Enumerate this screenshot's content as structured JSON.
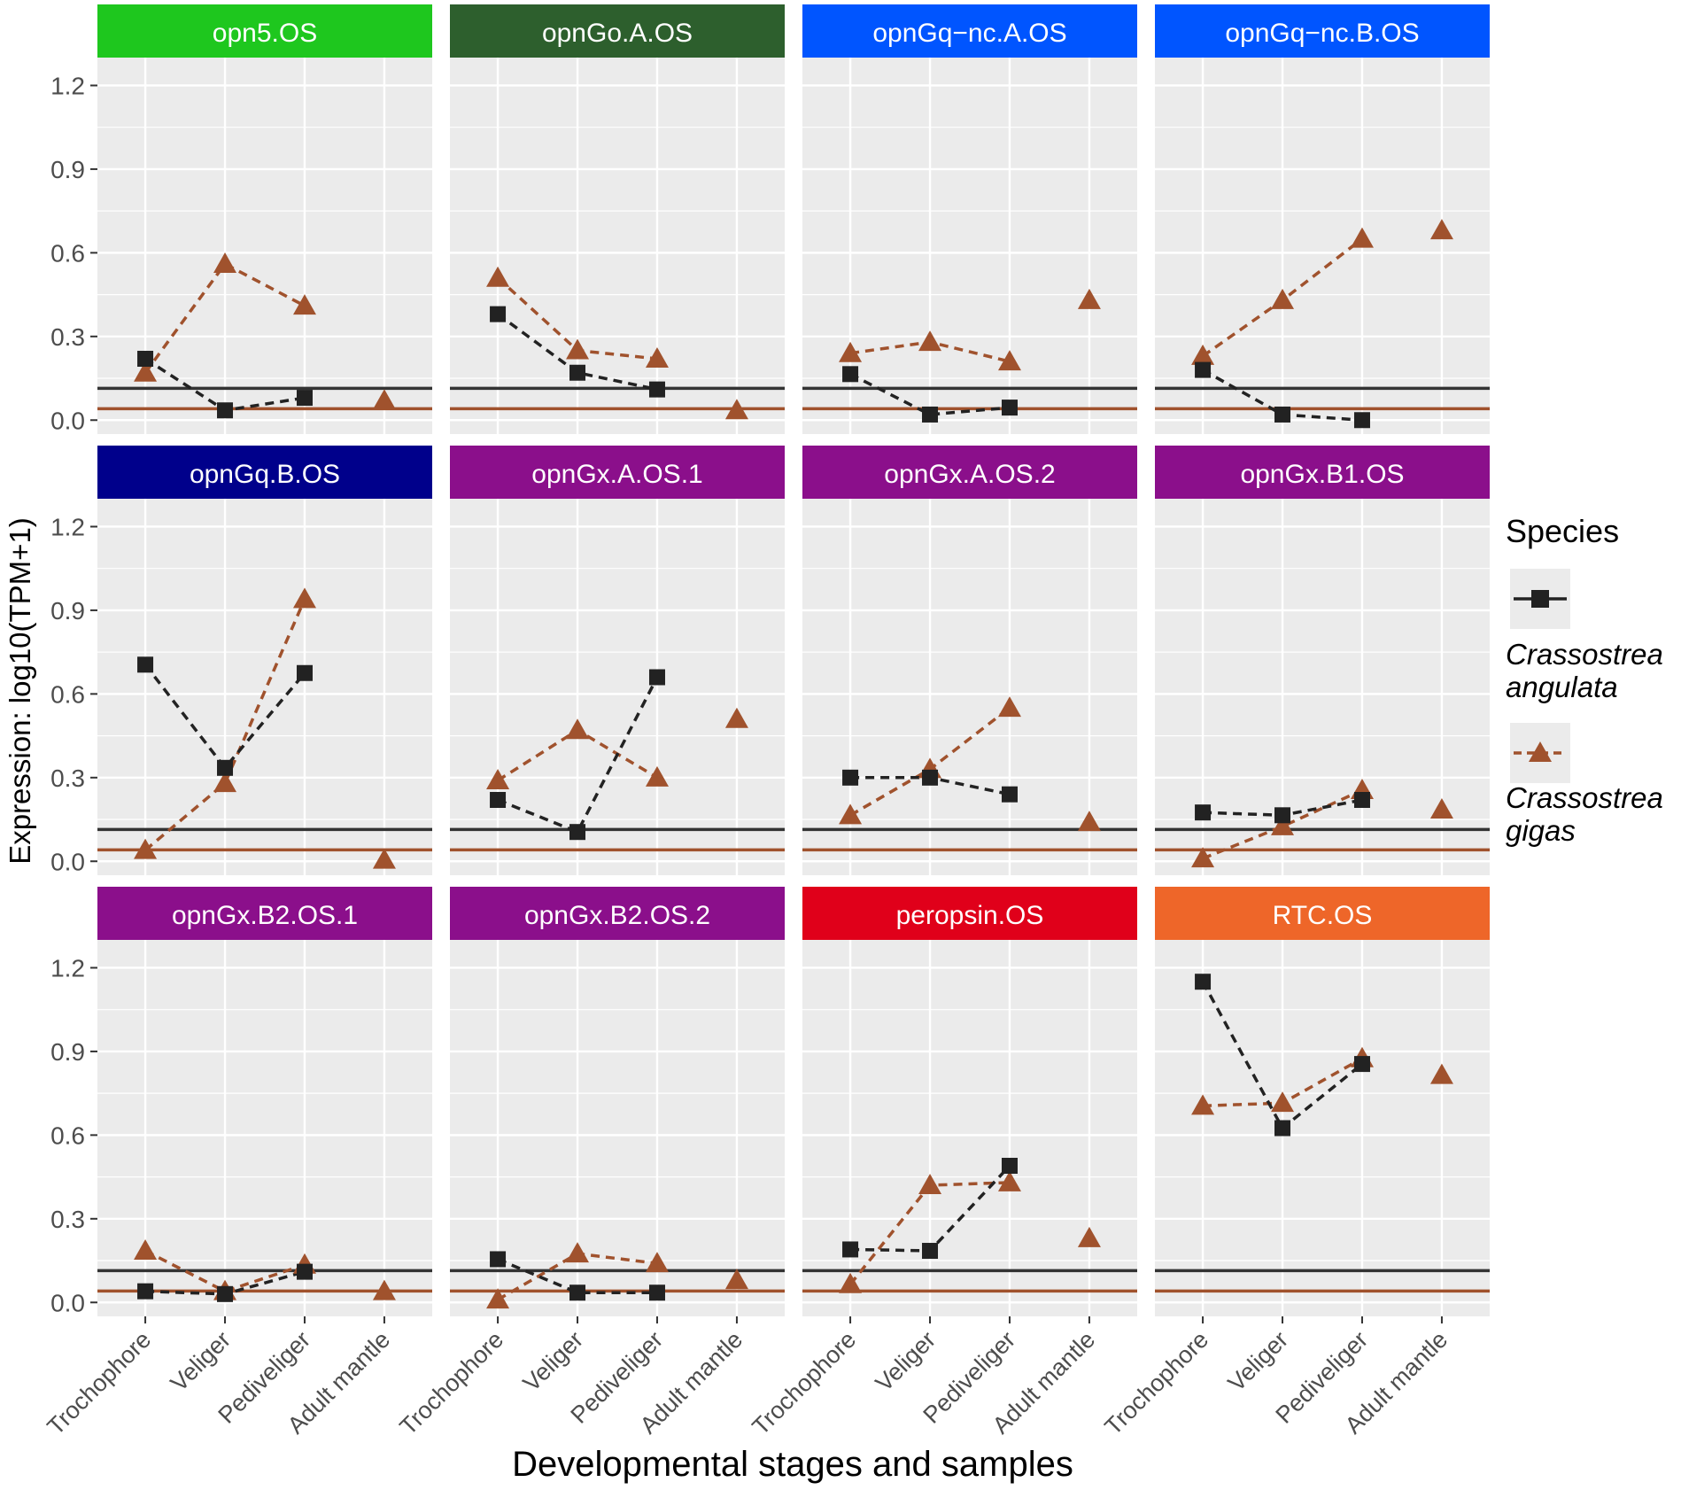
{
  "chart_data": {
    "type": "line",
    "layout": "faceted-3x4",
    "xlabel": "Developmental stages and samples",
    "ylabel": "Expression: log10(TPM+1)",
    "ylim": [
      -0.05,
      1.3
    ],
    "yticks": [
      "0.0",
      "0.3",
      "0.6",
      "0.9",
      "1.2"
    ],
    "ytick_values": [
      0,
      0.3,
      0.6,
      0.9,
      1.2
    ],
    "categories": [
      "Trochophore",
      "Veliger",
      "Pediveliger",
      "Adult mantle"
    ],
    "legend": {
      "title": "Species",
      "position": "right",
      "entries": [
        {
          "name_line1": "Crassostrea",
          "name_line2": "angulata",
          "color": "#222222",
          "marker": "square"
        },
        {
          "name_line1": "Crassostrea",
          "name_line2": "gigas",
          "color": "#a0522d",
          "marker": "triangle"
        }
      ]
    },
    "thresholds": {
      "angulata": 0.114,
      "gigas": 0.041
    },
    "colors": {
      "angulata": "#222222",
      "gigas": "#a0522d",
      "panel_bg": "#ebebeb",
      "grid": "#ffffff"
    },
    "panels": [
      {
        "title": "opn5.OS",
        "strip_color": "#1ec71e",
        "angulata": [
          0.22,
          0.035,
          0.08,
          null
        ],
        "gigas": [
          0.17,
          0.56,
          0.41,
          0.07
        ]
      },
      {
        "title": "opnGo.A.OS",
        "strip_color": "#2d5f2d",
        "angulata": [
          0.38,
          0.17,
          0.11,
          null
        ],
        "gigas": [
          0.51,
          0.25,
          0.22,
          0.035
        ]
      },
      {
        "title": "opnGq−nc.A.OS",
        "strip_color": "#0055ff",
        "angulata": [
          0.165,
          0.02,
          0.045,
          null
        ],
        "gigas": [
          0.24,
          0.28,
          0.21,
          0.43
        ]
      },
      {
        "title": "opnGq−nc.B.OS",
        "strip_color": "#0055ff",
        "angulata": [
          0.18,
          0.02,
          0.0,
          null
        ],
        "gigas": [
          0.23,
          0.43,
          0.65,
          0.68
        ]
      },
      {
        "title": "opnGq.B.OS",
        "strip_color": "#00008b",
        "angulata": [
          0.705,
          0.335,
          0.675,
          null
        ],
        "gigas": [
          0.04,
          0.28,
          0.94,
          0.005
        ]
      },
      {
        "title": "opnGx.A.OS.1",
        "strip_color": "#8b0f8b",
        "angulata": [
          0.22,
          0.105,
          0.66,
          null
        ],
        "gigas": [
          0.29,
          0.47,
          0.3,
          0.51
        ]
      },
      {
        "title": "opnGx.A.OS.2",
        "strip_color": "#8b0f8b",
        "angulata": [
          0.3,
          0.3,
          0.24,
          null
        ],
        "gigas": [
          0.165,
          0.33,
          0.55,
          0.14
        ]
      },
      {
        "title": "opnGx.B1.OS",
        "strip_color": "#8b0f8b",
        "angulata": [
          0.175,
          0.165,
          0.22,
          null
        ],
        "gigas": [
          0.01,
          0.125,
          0.255,
          0.185
        ]
      },
      {
        "title": "opnGx.B2.OS.1",
        "strip_color": "#8b0f8b",
        "angulata": [
          0.04,
          0.03,
          0.11,
          null
        ],
        "gigas": [
          0.185,
          0.04,
          0.135,
          0.04
        ]
      },
      {
        "title": "opnGx.B2.OS.2",
        "strip_color": "#8b0f8b",
        "angulata": [
          0.155,
          0.035,
          0.035,
          null
        ],
        "gigas": [
          0.01,
          0.175,
          0.14,
          0.08
        ]
      },
      {
        "title": "peropsin.OS",
        "strip_color": "#e0001a",
        "angulata": [
          0.19,
          0.185,
          0.49,
          null
        ],
        "gigas": [
          0.065,
          0.42,
          0.43,
          0.23
        ]
      },
      {
        "title": "RTC.OS",
        "strip_color": "#ee6629",
        "angulata": [
          1.15,
          0.625,
          0.855,
          null
        ],
        "gigas": [
          0.705,
          0.715,
          0.875,
          0.815
        ]
      }
    ]
  }
}
